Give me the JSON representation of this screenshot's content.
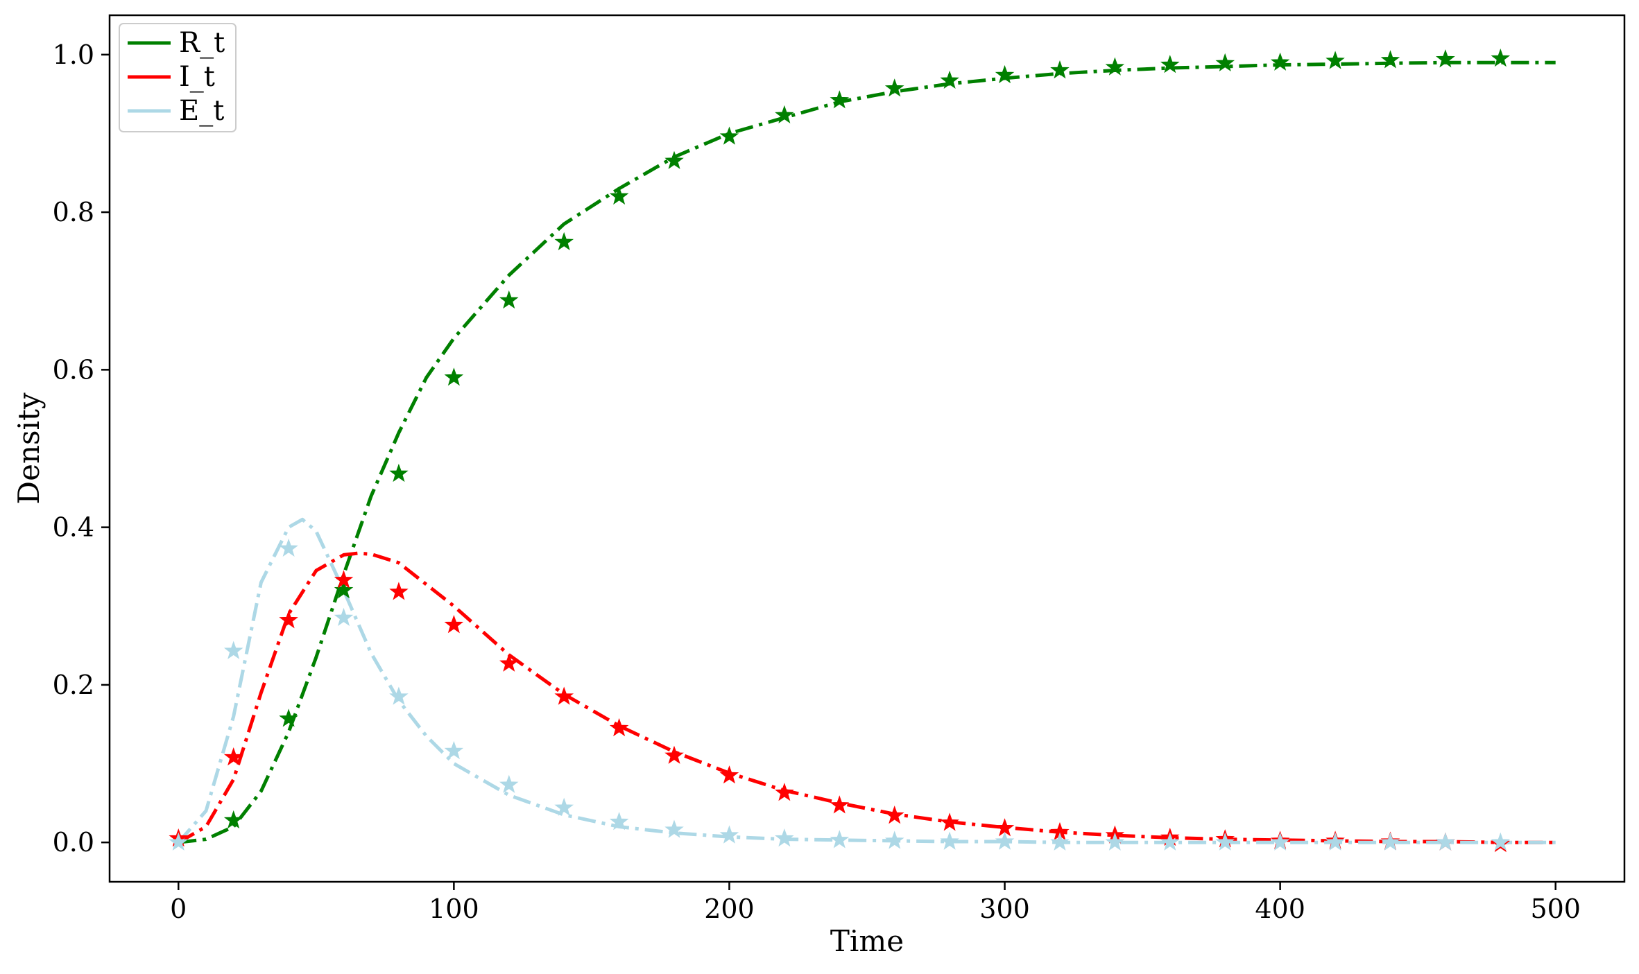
{
  "chart_data": {
    "type": "line",
    "title": "",
    "xlabel": "Time",
    "ylabel": "Density",
    "xlim": [
      -25,
      525
    ],
    "ylim": [
      -0.05,
      1.05
    ],
    "xticks": [
      0,
      100,
      200,
      300,
      400,
      500
    ],
    "yticks": [
      0.0,
      0.2,
      0.4,
      0.6,
      0.8,
      1.0
    ],
    "xtick_labels": [
      "0",
      "100",
      "200",
      "300",
      "400",
      "500"
    ],
    "ytick_labels": [
      "0.0",
      "0.2",
      "0.4",
      "0.6",
      "0.8",
      "1.0"
    ],
    "grid": false,
    "legend_position": "top-left",
    "legend": [
      "R_t",
      "I_t",
      "E_t"
    ],
    "series": [
      {
        "name": "R_t",
        "color": "#008000",
        "line": {
          "x": [
            0,
            10,
            20,
            30,
            40,
            50,
            60,
            70,
            80,
            90,
            100,
            120,
            140,
            160,
            180,
            200,
            220,
            240,
            260,
            280,
            300,
            320,
            340,
            360,
            380,
            400,
            420,
            440,
            460,
            480,
            500
          ],
          "y": [
            0.0,
            0.004,
            0.02,
            0.065,
            0.14,
            0.235,
            0.34,
            0.44,
            0.52,
            0.59,
            0.64,
            0.72,
            0.785,
            0.83,
            0.87,
            0.9,
            0.92,
            0.94,
            0.953,
            0.963,
            0.97,
            0.976,
            0.98,
            0.983,
            0.985,
            0.987,
            0.988,
            0.989,
            0.99,
            0.99,
            0.99
          ]
        },
        "markers": {
          "x": [
            20,
            40,
            60,
            80,
            100,
            120,
            140,
            160,
            180,
            200,
            220,
            240,
            260,
            280,
            300,
            320,
            340,
            360,
            380,
            400,
            420,
            440,
            460,
            480
          ],
          "y": [
            0.028,
            0.157,
            0.32,
            0.468,
            0.59,
            0.688,
            0.762,
            0.82,
            0.865,
            0.896,
            0.923,
            0.942,
            0.957,
            0.967,
            0.974,
            0.98,
            0.984,
            0.987,
            0.989,
            0.99,
            0.992,
            0.993,
            0.994,
            0.995
          ]
        }
      },
      {
        "name": "I_t",
        "color": "#ff0000",
        "line": {
          "x": [
            0,
            10,
            20,
            30,
            40,
            50,
            60,
            65,
            70,
            80,
            100,
            120,
            140,
            160,
            180,
            200,
            220,
            240,
            260,
            280,
            300,
            320,
            340,
            360,
            380,
            400,
            420,
            440,
            460,
            480,
            500
          ],
          "y": [
            0.0,
            0.02,
            0.08,
            0.19,
            0.29,
            0.345,
            0.365,
            0.367,
            0.366,
            0.355,
            0.3,
            0.238,
            0.188,
            0.148,
            0.115,
            0.088,
            0.066,
            0.05,
            0.036,
            0.026,
            0.019,
            0.013,
            0.009,
            0.006,
            0.004,
            0.003,
            0.002,
            0.001,
            0.001,
            0.0,
            0.0
          ]
        },
        "markers": {
          "x": [
            0,
            20,
            40,
            60,
            80,
            100,
            120,
            140,
            160,
            180,
            200,
            220,
            240,
            260,
            280,
            300,
            320,
            340,
            360,
            380,
            400,
            420,
            440,
            460,
            480
          ],
          "y": [
            0.005,
            0.108,
            0.282,
            0.333,
            0.318,
            0.276,
            0.227,
            0.185,
            0.145,
            0.11,
            0.085,
            0.063,
            0.047,
            0.034,
            0.025,
            0.018,
            0.013,
            0.009,
            0.006,
            0.004,
            0.002,
            0.002,
            0.001,
            0.0,
            -0.002
          ]
        }
      },
      {
        "name": "E_t",
        "color": "#add8e6",
        "line": {
          "x": [
            0,
            10,
            20,
            30,
            40,
            45,
            50,
            60,
            70,
            80,
            90,
            100,
            120,
            140,
            160,
            180,
            200,
            220,
            240,
            260,
            280,
            300,
            320,
            340,
            360,
            380,
            400,
            420,
            440,
            460,
            480,
            500
          ],
          "y": [
            0.0,
            0.04,
            0.16,
            0.33,
            0.4,
            0.41,
            0.395,
            0.32,
            0.24,
            0.18,
            0.135,
            0.1,
            0.06,
            0.035,
            0.02,
            0.012,
            0.007,
            0.004,
            0.003,
            0.002,
            0.001,
            0.001,
            0.0,
            0.0,
            0.0,
            0.0,
            0.0,
            0.0,
            0.0,
            0.0,
            0.0,
            0.0
          ]
        },
        "markers": {
          "x": [
            0,
            20,
            40,
            60,
            80,
            100,
            120,
            140,
            160,
            180,
            200,
            220,
            240,
            260,
            280,
            300,
            320,
            340,
            360,
            380,
            400,
            420,
            440,
            460,
            480
          ],
          "y": [
            0.0,
            0.243,
            0.373,
            0.285,
            0.185,
            0.116,
            0.073,
            0.044,
            0.026,
            0.016,
            0.009,
            0.005,
            0.003,
            0.002,
            0.001,
            0.001,
            0.0,
            0.0,
            0.0,
            0.0,
            0.0,
            0.0,
            0.0,
            0.0,
            0.0
          ]
        }
      }
    ]
  }
}
